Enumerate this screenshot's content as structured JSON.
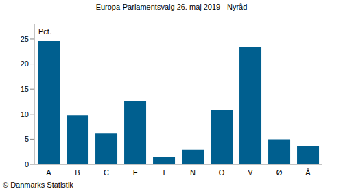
{
  "chart_data": {
    "type": "bar",
    "title": "Europa-Parlamentsvalg 26. maj 2019 - Nyråd",
    "y_label": "Pct.",
    "annotations": [
      "© Danmarks Statistik"
    ],
    "categories": [
      "A",
      "B",
      "C",
      "F",
      "I",
      "N",
      "O",
      "V",
      "Ø",
      "Å"
    ],
    "values": [
      24.6,
      9.8,
      6.1,
      12.6,
      1.5,
      2.9,
      10.9,
      23.5,
      5.0,
      3.6
    ],
    "color": "#005f8f",
    "ylim": [
      0,
      28
    ],
    "yticks": [
      0,
      5,
      10,
      15,
      20,
      25
    ],
    "grid": false
  }
}
